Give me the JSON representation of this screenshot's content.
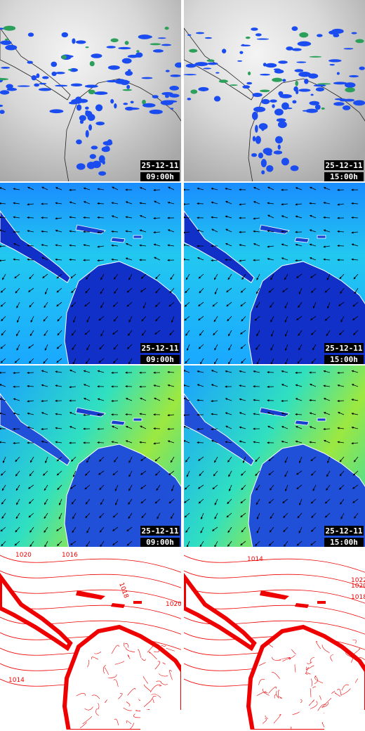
{
  "panels": [
    {
      "date": "25-12-11",
      "time": "09:00h"
    },
    {
      "date": "25-12-11",
      "time": "15:00h"
    },
    {
      "date": "25-12-11",
      "time": "09:00h"
    },
    {
      "date": "25-12-11",
      "time": "15:00h"
    },
    {
      "date": "25-12-11",
      "time": "09:00h"
    },
    {
      "date": "25-12-11",
      "time": "15:00h"
    }
  ],
  "isobars": {
    "left": [
      "1020",
      "1016",
      "1018",
      "1020",
      "1014"
    ],
    "right": [
      "1014",
      "1022",
      "1020",
      "1018"
    ]
  }
}
